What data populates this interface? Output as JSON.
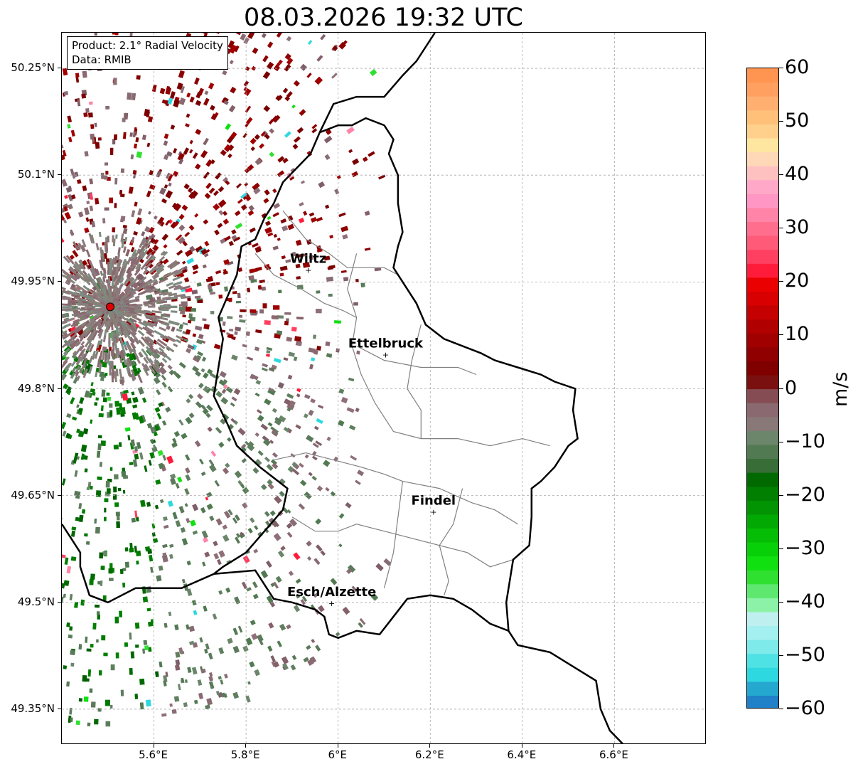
{
  "title": "08.03.2026 19:32 UTC",
  "info": {
    "product": "Product: 2.1° Radial Velocity",
    "source": "Data: RMIB"
  },
  "map": {
    "lon_range": [
      5.4,
      6.8
    ],
    "lat_range": [
      49.3,
      50.3
    ],
    "lat_ticks": [
      {
        "value": 50.25,
        "label": "50.25°N"
      },
      {
        "value": 50.1,
        "label": "50.1°N"
      },
      {
        "value": 49.95,
        "label": "49.95°N"
      },
      {
        "value": 49.8,
        "label": "49.8°N"
      },
      {
        "value": 49.65,
        "label": "49.65°N"
      },
      {
        "value": 49.5,
        "label": "49.5°N"
      },
      {
        "value": 49.35,
        "label": "49.35°N"
      }
    ],
    "lon_ticks": [
      {
        "value": 5.6,
        "label": "5.6°E"
      },
      {
        "value": 5.8,
        "label": "5.8°E"
      },
      {
        "value": 6.0,
        "label": "6°E"
      },
      {
        "value": 6.2,
        "label": "6.2°E"
      },
      {
        "value": 6.4,
        "label": "6.4°E"
      },
      {
        "value": 6.6,
        "label": "6.6°E"
      }
    ],
    "grid": true,
    "radar_site": {
      "lon": 5.505,
      "lat": 49.915,
      "color": "#e00000"
    },
    "cities": [
      {
        "name": "Wiltz",
        "lon": 5.935,
        "lat": 49.967
      },
      {
        "name": "Ettelbruck",
        "lon": 6.103,
        "lat": 49.848
      },
      {
        "name": "Findel",
        "lon": 6.207,
        "lat": 49.627
      },
      {
        "name": "Esch/Alzette",
        "lon": 5.986,
        "lat": 49.499
      }
    ],
    "national_border": [
      [
        5.73,
        49.54
      ],
      [
        5.82,
        49.545
      ],
      [
        5.86,
        49.505
      ],
      [
        5.9,
        49.5
      ],
      [
        5.95,
        49.49
      ],
      [
        5.97,
        49.48
      ],
      [
        5.98,
        49.455
      ],
      [
        6.0,
        49.45
      ],
      [
        6.04,
        49.46
      ],
      [
        6.09,
        49.455
      ],
      [
        6.12,
        49.48
      ],
      [
        6.15,
        49.505
      ],
      [
        6.2,
        49.51
      ],
      [
        6.25,
        49.505
      ],
      [
        6.29,
        49.49
      ],
      [
        6.33,
        49.47
      ],
      [
        6.37,
        49.46
      ],
      [
        6.365,
        49.5
      ],
      [
        6.38,
        49.56
      ],
      [
        6.415,
        49.58
      ],
      [
        6.42,
        49.62
      ],
      [
        6.42,
        49.66
      ],
      [
        6.44,
        49.67
      ],
      [
        6.47,
        49.69
      ],
      [
        6.5,
        49.72
      ],
      [
        6.52,
        49.73
      ],
      [
        6.51,
        49.77
      ],
      [
        6.515,
        49.8
      ],
      [
        6.47,
        49.81
      ],
      [
        6.44,
        49.82
      ],
      [
        6.39,
        49.83
      ],
      [
        6.34,
        49.84
      ],
      [
        6.31,
        49.85
      ],
      [
        6.27,
        49.86
      ],
      [
        6.23,
        49.87
      ],
      [
        6.19,
        49.89
      ],
      [
        6.17,
        49.92
      ],
      [
        6.14,
        49.95
      ],
      [
        6.12,
        49.97
      ],
      [
        6.13,
        50.0
      ],
      [
        6.14,
        50.02
      ],
      [
        6.13,
        50.06
      ],
      [
        6.13,
        50.1
      ],
      [
        6.11,
        50.13
      ],
      [
        6.12,
        50.15
      ],
      [
        6.1,
        50.17
      ],
      [
        6.06,
        50.18
      ],
      [
        6.03,
        50.17
      ],
      [
        6.0,
        50.17
      ],
      [
        5.96,
        50.16
      ],
      [
        5.94,
        50.13
      ],
      [
        5.91,
        50.11
      ],
      [
        5.88,
        50.09
      ],
      [
        5.86,
        50.06
      ],
      [
        5.84,
        50.04
      ],
      [
        5.82,
        50.01
      ],
      [
        5.79,
        50.0
      ],
      [
        5.78,
        49.96
      ],
      [
        5.74,
        49.9
      ],
      [
        5.75,
        49.87
      ],
      [
        5.74,
        49.83
      ],
      [
        5.73,
        49.79
      ],
      [
        5.76,
        49.75
      ],
      [
        5.78,
        49.72
      ],
      [
        5.83,
        49.69
      ],
      [
        5.89,
        49.66
      ],
      [
        5.88,
        49.63
      ],
      [
        5.84,
        49.6
      ],
      [
        5.8,
        49.57
      ],
      [
        5.75,
        49.55
      ],
      [
        5.73,
        49.54
      ]
    ],
    "french_border": [
      [
        5.4,
        49.61
      ],
      [
        5.42,
        49.59
      ],
      [
        5.44,
        49.57
      ],
      [
        5.44,
        49.55
      ],
      [
        5.46,
        49.51
      ],
      [
        5.5,
        49.5
      ],
      [
        5.56,
        49.52
      ],
      [
        5.6,
        49.52
      ],
      [
        5.66,
        49.52
      ],
      [
        5.73,
        49.54
      ]
    ],
    "german_border": [
      [
        6.37,
        49.46
      ],
      [
        6.39,
        49.44
      ],
      [
        6.46,
        49.43
      ],
      [
        6.51,
        49.41
      ],
      [
        6.56,
        49.39
      ],
      [
        6.57,
        49.35
      ],
      [
        6.59,
        49.32
      ],
      [
        6.62,
        49.3
      ]
    ],
    "belgian_german_border": [
      [
        5.96,
        50.16
      ],
      [
        5.99,
        50.2
      ],
      [
        6.04,
        50.21
      ],
      [
        6.1,
        50.21
      ],
      [
        6.14,
        50.24
      ],
      [
        6.17,
        50.26
      ],
      [
        6.2,
        50.29
      ],
      [
        6.21,
        50.3
      ]
    ],
    "cantonal_borders": [
      [
        [
          5.88,
          50.05
        ],
        [
          5.93,
          50.01
        ],
        [
          5.98,
          49.99
        ],
        [
          6.02,
          49.97
        ],
        [
          6.06,
          49.97
        ],
        [
          6.1,
          49.97
        ],
        [
          6.13,
          49.96
        ]
      ],
      [
        [
          5.82,
          49.99
        ],
        [
          5.86,
          49.96
        ],
        [
          5.92,
          49.94
        ],
        [
          5.97,
          49.92
        ],
        [
          6.01,
          49.91
        ],
        [
          6.04,
          49.9
        ]
      ],
      [
        [
          6.04,
          49.99
        ],
        [
          6.02,
          49.94
        ],
        [
          6.04,
          49.9
        ],
        [
          6.03,
          49.86
        ],
        [
          6.05,
          49.82
        ],
        [
          6.08,
          49.78
        ],
        [
          6.12,
          49.74
        ],
        [
          6.18,
          49.73
        ],
        [
          6.26,
          49.73
        ],
        [
          6.33,
          49.72
        ],
        [
          6.4,
          49.73
        ],
        [
          6.46,
          49.72
        ]
      ],
      [
        [
          6.04,
          49.86
        ],
        [
          6.1,
          49.84
        ],
        [
          6.18,
          49.83
        ],
        [
          6.26,
          49.83
        ],
        [
          6.3,
          49.82
        ]
      ],
      [
        [
          6.18,
          49.89
        ],
        [
          6.16,
          49.84
        ],
        [
          6.15,
          49.8
        ],
        [
          6.18,
          49.77
        ],
        [
          6.18,
          49.73
        ]
      ],
      [
        [
          5.86,
          49.7
        ],
        [
          5.93,
          49.71
        ],
        [
          5.99,
          49.7
        ],
        [
          6.05,
          49.69
        ],
        [
          6.1,
          49.68
        ],
        [
          6.14,
          49.67
        ],
        [
          6.22,
          49.66
        ],
        [
          6.29,
          49.64
        ],
        [
          6.34,
          49.63
        ],
        [
          6.39,
          49.61
        ]
      ],
      [
        [
          5.9,
          49.62
        ],
        [
          5.95,
          49.6
        ],
        [
          6.0,
          49.6
        ],
        [
          6.04,
          49.61
        ],
        [
          6.1,
          49.6
        ],
        [
          6.16,
          49.59
        ],
        [
          6.22,
          49.58
        ],
        [
          6.28,
          49.57
        ],
        [
          6.33,
          49.55
        ],
        [
          6.38,
          49.56
        ]
      ],
      [
        [
          6.14,
          49.67
        ],
        [
          6.13,
          49.62
        ],
        [
          6.12,
          49.57
        ],
        [
          6.1,
          49.52
        ]
      ],
      [
        [
          6.27,
          49.66
        ],
        [
          6.25,
          49.61
        ],
        [
          6.22,
          49.58
        ],
        [
          6.24,
          49.53
        ],
        [
          6.23,
          49.51
        ]
      ]
    ]
  },
  "colorbar": {
    "unit": "m/s",
    "min": -60,
    "max": 60,
    "ticks": [
      {
        "value": 60,
        "label": "60"
      },
      {
        "value": 50,
        "label": "50"
      },
      {
        "value": 40,
        "label": "40"
      },
      {
        "value": 30,
        "label": "30"
      },
      {
        "value": 20,
        "label": "20"
      },
      {
        "value": 10,
        "label": "10"
      },
      {
        "value": 0,
        "label": "0"
      },
      {
        "value": -10,
        "label": "−10"
      },
      {
        "value": -20,
        "label": "−20"
      },
      {
        "value": -30,
        "label": "−30"
      },
      {
        "value": -40,
        "label": "−40"
      },
      {
        "value": -50,
        "label": "−50"
      },
      {
        "value": -60,
        "label": "−60"
      }
    ],
    "colors": [
      "#2080c8",
      "#25a8d0",
      "#2ed8e0",
      "#4ee2e4",
      "#7eeaea",
      "#a4f0f0",
      "#bff0ef",
      "#8cf2a8",
      "#5ee870",
      "#30e030",
      "#10e010",
      "#08d008",
      "#05bd05",
      "#03a903",
      "#029402",
      "#017f01",
      "#006a00",
      "#386d38",
      "#527a52",
      "#6b866b",
      "#887878",
      "#8a6a70",
      "#864c54",
      "#7a1010",
      "#800000",
      "#900000",
      "#a00000",
      "#b00000",
      "#c40000",
      "#d80000",
      "#ea0000",
      "#ff1c3a",
      "#ff4060",
      "#ff5a78",
      "#ff6e8c",
      "#ff84a8",
      "#ff96c4",
      "#ffa8c8",
      "#ffc0c0",
      "#ffd8b8",
      "#ffe6a0",
      "#ffd08c",
      "#ffc07a",
      "#ffb070",
      "#ffa060",
      "#ff9550"
    ]
  }
}
